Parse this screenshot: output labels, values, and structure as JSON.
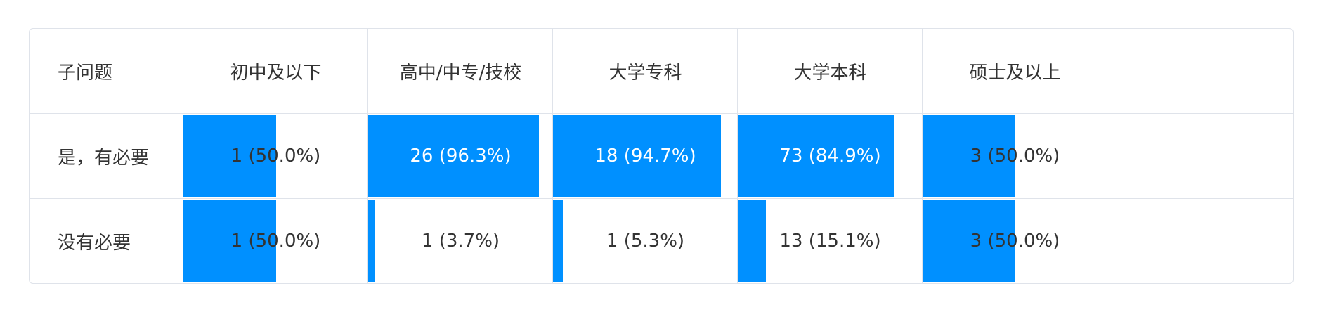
{
  "chart_data": {
    "type": "table",
    "header": {
      "question": "子问题",
      "categories": [
        "初中及以下",
        "高中/中专/技校",
        "大学专科",
        "大学本科",
        "硕士及以上"
      ]
    },
    "rows": [
      {
        "label": "是，有必要",
        "cells": [
          {
            "count": 1,
            "percent": 50.0,
            "text": "1 (50.0%)"
          },
          {
            "count": 26,
            "percent": 96.3,
            "text": "26 (96.3%)"
          },
          {
            "count": 18,
            "percent": 94.7,
            "text": "18 (94.7%)"
          },
          {
            "count": 73,
            "percent": 84.9,
            "text": "73 (84.9%)"
          },
          {
            "count": 3,
            "percent": 50.0,
            "text": "3 (50.0%)"
          }
        ]
      },
      {
        "label": "没有必要",
        "cells": [
          {
            "count": 1,
            "percent": 50.0,
            "text": "1 (50.0%)"
          },
          {
            "count": 1,
            "percent": 3.7,
            "text": "1 (3.7%)"
          },
          {
            "count": 1,
            "percent": 5.3,
            "text": "1 (5.3%)"
          },
          {
            "count": 13,
            "percent": 15.1,
            "text": "13 (15.1%)"
          },
          {
            "count": 3,
            "percent": 50.0,
            "text": "3 (50.0%)"
          }
        ]
      }
    ],
    "colors": {
      "bar": "#0090ff",
      "border": "#dfe3ea",
      "text": "#333333"
    }
  }
}
